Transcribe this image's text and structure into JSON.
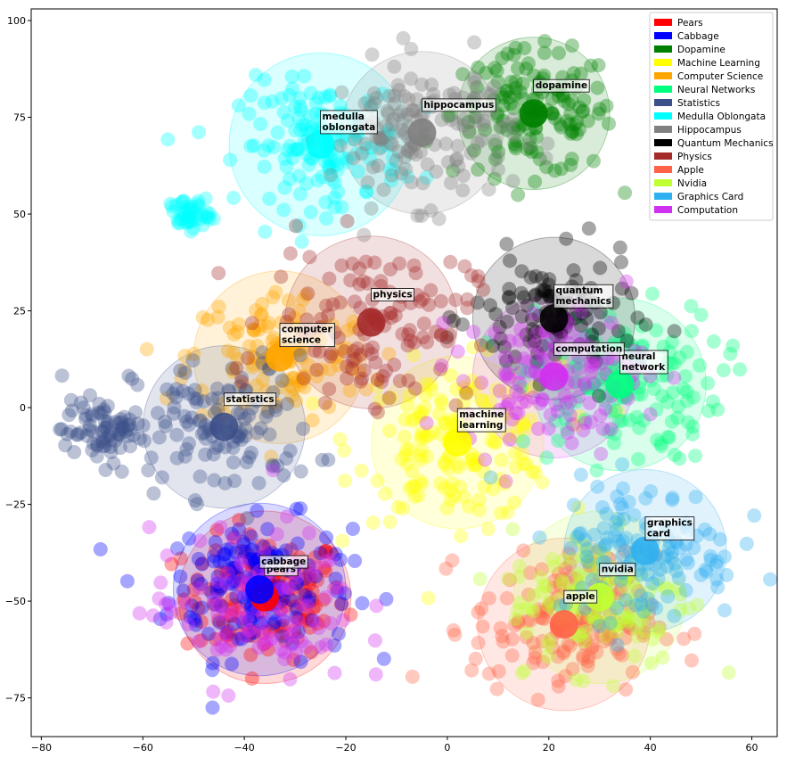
{
  "chart_data": {
    "type": "scatter",
    "title": "",
    "xlabel": "",
    "ylabel": "",
    "xlim": [
      -82,
      65
    ],
    "ylim": [
      -85,
      103
    ],
    "x_ticks": [
      -80,
      -60,
      -40,
      -20,
      0,
      20,
      40,
      60
    ],
    "y_ticks": [
      -75,
      -50,
      -25,
      0,
      25,
      50,
      75,
      100
    ],
    "grid": false,
    "legend_position": "top-right",
    "series": [
      {
        "name": "Pears",
        "color": "#ff0000",
        "centroid": [
          -36,
          -49
        ],
        "spread": 8,
        "count": 150,
        "radius": 17,
        "label": "pears"
      },
      {
        "name": "Cabbage",
        "color": "#0000ff",
        "centroid": [
          -37,
          -47
        ],
        "spread": 9,
        "count": 120,
        "radius": 17,
        "label": "cabbage"
      },
      {
        "name": "Dopamine",
        "color": "#008000",
        "centroid": [
          17,
          76
        ],
        "spread": 8,
        "count": 150,
        "radius": 15,
        "label": "dopamine"
      },
      {
        "name": "Machine Learning",
        "color": "#ffff00",
        "centroid": [
          2,
          -9
        ],
        "spread": 10,
        "count": 160,
        "radius": 17,
        "label": "machine\nlearning"
      },
      {
        "name": "Computer Science",
        "color": "#ffa500",
        "centroid": [
          -33,
          13
        ],
        "spread": 9,
        "count": 130,
        "radius": 17,
        "label": "computer\nscience"
      },
      {
        "name": "Neural Networks",
        "color": "#00ff7f",
        "centroid": [
          34,
          6
        ],
        "spread": 10,
        "count": 130,
        "radius": 17,
        "label": "neural\nnetwork"
      },
      {
        "name": "Statistics",
        "color": "#3b4f8a",
        "centroid": [
          -44,
          -5
        ],
        "spread": 9,
        "count": 120,
        "radius": 16,
        "label": "statistics"
      },
      {
        "name": "Medulla Oblongata",
        "color": "#00ffff",
        "centroid": [
          -25,
          68
        ],
        "spread": 8,
        "count": 150,
        "radius": 18,
        "label": "medulla\noblongata"
      },
      {
        "name": "Hippocampus",
        "color": "#808080",
        "centroid": [
          -5,
          71
        ],
        "spread": 9,
        "count": 150,
        "radius": 16,
        "label": "hippocampus"
      },
      {
        "name": "Quantum Mechanics",
        "color": "#000000",
        "centroid": [
          21,
          23
        ],
        "spread": 8,
        "count": 110,
        "radius": 16,
        "label": "quantum\nmechanics"
      },
      {
        "name": "Physics",
        "color": "#a52a2a",
        "centroid": [
          -15,
          22
        ],
        "spread": 10,
        "count": 130,
        "radius": 17,
        "label": "physics"
      },
      {
        "name": "Apple",
        "color": "#ff6347",
        "centroid": [
          23,
          -56
        ],
        "spread": 9,
        "count": 150,
        "radius": 17,
        "label": "apple"
      },
      {
        "name": "Nvidia",
        "color": "#c0ff30",
        "centroid": [
          30,
          -49
        ],
        "spread": 9,
        "count": 140,
        "radius": 17,
        "label": "nvidia"
      },
      {
        "name": "Graphics Card",
        "color": "#30b0f0",
        "centroid": [
          39,
          -37
        ],
        "spread": 9,
        "count": 140,
        "radius": 16,
        "label": "graphics\ncard"
      },
      {
        "name": "Computation",
        "color": "#d030f0",
        "centroid": [
          21,
          8
        ],
        "spread": 9,
        "count": 130,
        "radius": 16,
        "label": "computation"
      }
    ],
    "extra_clusters": [
      {
        "series": "Medulla Oblongata",
        "center": [
          -51,
          50
        ],
        "spread": 2,
        "count": 45
      },
      {
        "series": "Statistics",
        "center": [
          -68,
          -6
        ],
        "spread": 4,
        "count": 80
      },
      {
        "series": "Cabbage",
        "center": [
          -40,
          -42
        ],
        "spread": 6,
        "count": 60
      },
      {
        "series": "Computation",
        "center": [
          -38,
          -52
        ],
        "spread": 10,
        "count": 110
      }
    ]
  }
}
